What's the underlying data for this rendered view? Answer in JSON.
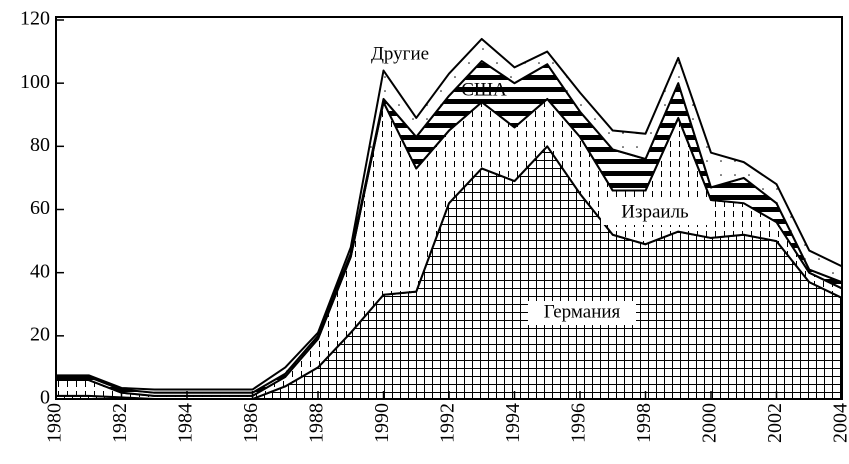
{
  "chart_data": {
    "type": "stacked-area",
    "x": [
      1980,
      1981,
      1982,
      1983,
      1984,
      1985,
      1986,
      1987,
      1988,
      1989,
      1990,
      1991,
      1992,
      1993,
      1994,
      1995,
      1996,
      1997,
      1998,
      1999,
      2000,
      2001,
      2002,
      2003,
      2004
    ],
    "series": [
      {
        "name": "Германия",
        "values": [
          1,
          1,
          0.5,
          0,
          0,
          0,
          0,
          4,
          10,
          21,
          33,
          34,
          62,
          73,
          69,
          80,
          65,
          52,
          49,
          53,
          51,
          52,
          50,
          37,
          32
        ]
      },
      {
        "name": "Израиль",
        "values": [
          5,
          5,
          1.5,
          1,
          1,
          1,
          1,
          3,
          9,
          24,
          61,
          39,
          23,
          21,
          17,
          15,
          18,
          14,
          17,
          36,
          12,
          10,
          6,
          3,
          3
        ]
      },
      {
        "name": "США",
        "values": [
          1,
          1,
          1,
          1,
          1,
          1,
          1,
          1,
          1,
          1,
          1,
          10,
          11,
          13,
          14,
          11,
          8,
          13,
          10,
          11,
          4,
          8,
          6,
          1,
          2
        ]
      },
      {
        "name": "Другие",
        "values": [
          0.5,
          0.5,
          0.5,
          1,
          1,
          1,
          1,
          2,
          1,
          2,
          9,
          6,
          7,
          7,
          5,
          4,
          6,
          6,
          8,
          8,
          11,
          5,
          6,
          6,
          5
        ]
      }
    ],
    "xlim": [
      1980,
      2004
    ],
    "xticks": [
      1980,
      1982,
      1984,
      1986,
      1988,
      1990,
      1992,
      1994,
      1996,
      1998,
      2000,
      2002,
      2004
    ],
    "ylim": [
      0,
      120
    ],
    "yticks": [
      0,
      20,
      40,
      60,
      80,
      100,
      120
    ]
  }
}
